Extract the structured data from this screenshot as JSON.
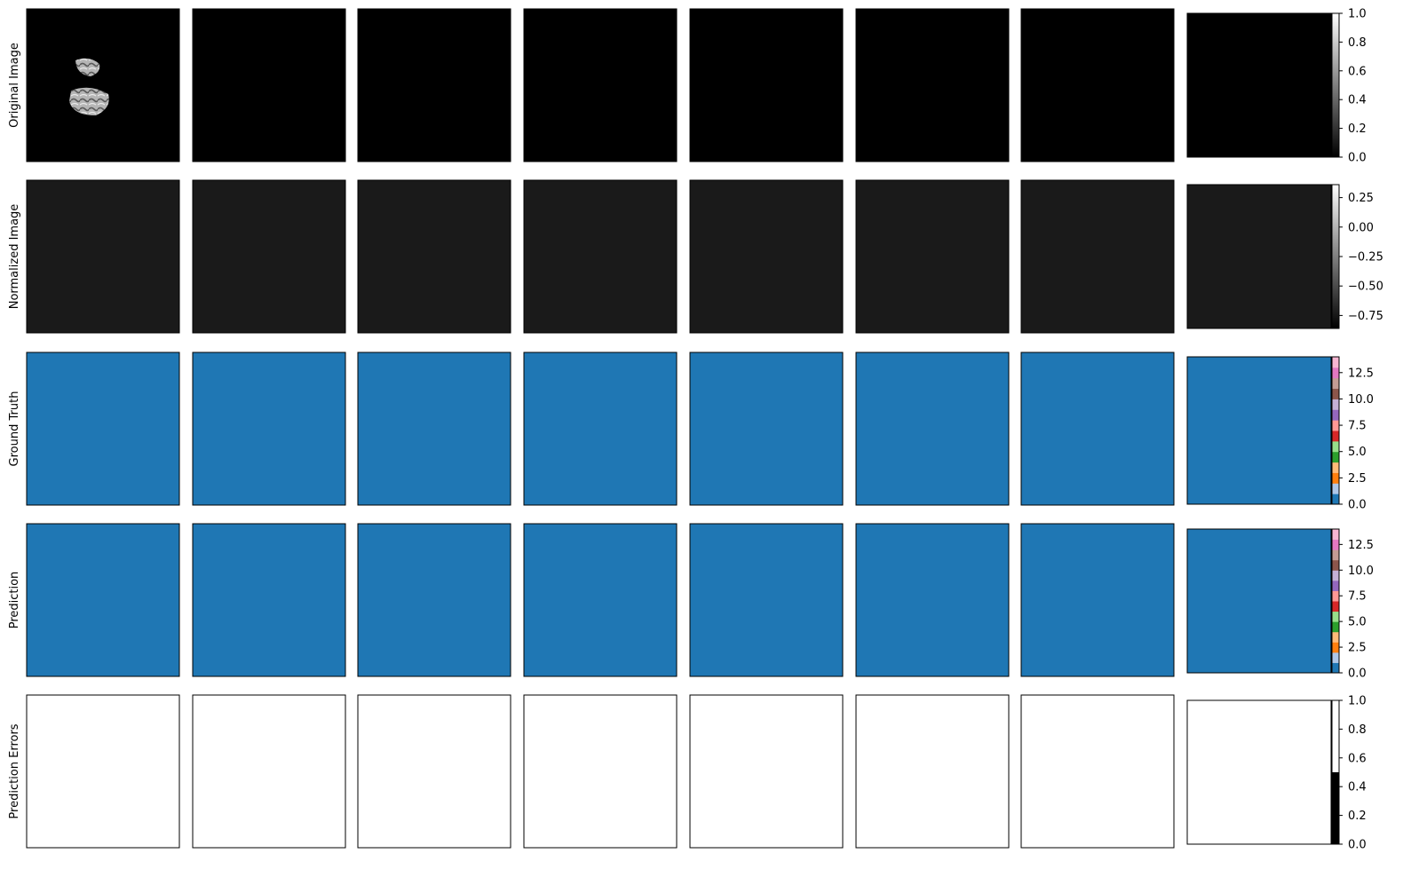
{
  "rows": [
    {
      "label": "Original Image",
      "kind": "original"
    },
    {
      "label": "Normalized Image",
      "kind": "normalized"
    },
    {
      "label": "Ground Truth",
      "kind": "truth"
    },
    {
      "label": "Prediction",
      "kind": "prediction"
    },
    {
      "label": "Prediction Errors",
      "kind": "errors"
    }
  ],
  "columns": 8,
  "colorbars": [
    {
      "row": 0,
      "colormap": "gray",
      "ticks": [
        "0.0",
        "0.2",
        "0.4",
        "0.6",
        "0.8",
        "1.0"
      ],
      "values": [
        0.0,
        0.2,
        0.4,
        0.6,
        0.8,
        1.0
      ],
      "range": [
        0,
        1
      ]
    },
    {
      "row": 1,
      "colormap": "gray",
      "ticks": [
        "−0.75",
        "−0.50",
        "−0.25",
        "0.00",
        "0.25"
      ],
      "values": [
        -0.75,
        -0.5,
        -0.25,
        0.0,
        0.25
      ],
      "range": [
        -0.86,
        0.36
      ]
    },
    {
      "row": 2,
      "colormap": "tab20",
      "ticks": [
        "0.0",
        "2.5",
        "5.0",
        "7.5",
        "10.0",
        "12.5"
      ],
      "values": [
        0,
        2.5,
        5,
        7.5,
        10,
        12.5
      ],
      "range": [
        0,
        14
      ]
    },
    {
      "row": 3,
      "colormap": "tab20",
      "ticks": [
        "0.0",
        "2.5",
        "5.0",
        "7.5",
        "10.0",
        "12.5"
      ],
      "values": [
        0,
        2.5,
        5,
        7.5,
        10,
        12.5
      ],
      "range": [
        0,
        14
      ]
    },
    {
      "row": 4,
      "colormap": "binary",
      "ticks": [
        "0.0",
        "0.2",
        "0.4",
        "0.6",
        "0.8",
        "1.0"
      ],
      "values": [
        0.0,
        0.2,
        0.4,
        0.6,
        0.8,
        1.0
      ],
      "range": [
        0,
        1
      ]
    }
  ],
  "tab20_colors": [
    "#1f77b4",
    "#aec7e8",
    "#ff7f0e",
    "#ffbb78",
    "#2ca02c",
    "#98df8a",
    "#d62728",
    "#ff9896",
    "#9467bd",
    "#c5b0d5",
    "#8c564b",
    "#c49c94",
    "#e377c2",
    "#f7b6d2",
    "#7f7f7f",
    "#c7c7c7",
    "#bcbd22",
    "#dbdb8d",
    "#17becf",
    "#9edae5"
  ],
  "colors": {
    "background_label": "#1f77b4",
    "white_matter": "#98df8a",
    "gray_matter": "#2ca02c",
    "cerebellum": "#aec7e8",
    "error": "#000000",
    "normalized_bg": "#1a1a1a"
  }
}
